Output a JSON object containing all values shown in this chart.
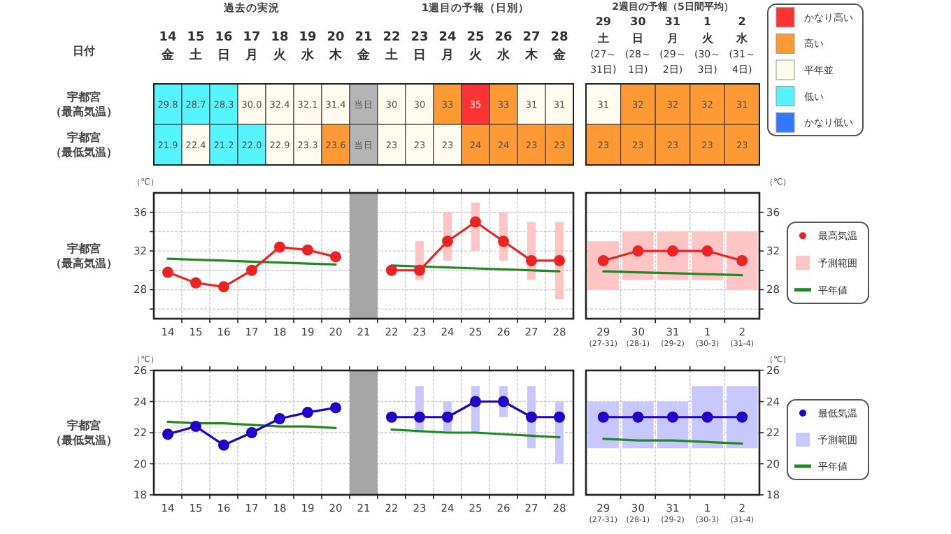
{
  "chart_data": [
    {
      "type": "heatmap",
      "xlabel": "日付",
      "annotations": [
        "過去の実況",
        "1週目の予報（日別）"
      ],
      "categories": [
        "14\n金",
        "15\n土",
        "16\n日",
        "17\n月",
        "18\n火",
        "19\n水",
        "20\n木",
        "21\n金",
        "22\n土",
        "23\n日",
        "24\n月",
        "25\n火",
        "26\n水",
        "27\n木",
        "28\n金"
      ],
      "y_categories": [
        "宇都宮（最高気温）",
        "宇都宮（最低気温）"
      ],
      "cells": [
        [
          29.8,
          28.7,
          28.3,
          30.0,
          32.4,
          32.1,
          31.4,
          null,
          30,
          30,
          33,
          35,
          33,
          31,
          31
        ],
        [
          21.9,
          22.4,
          21.2,
          22.0,
          22.9,
          23.3,
          23.6,
          null,
          23,
          23,
          23,
          24,
          24,
          23,
          23
        ]
      ],
      "cell_labels": [
        [
          "29.8",
          "28.7",
          "28.3",
          "30.0",
          "32.4",
          "32.1",
          "31.4",
          "当日",
          "30",
          "30",
          "33",
          "35",
          "33",
          "31",
          "31"
        ],
        [
          "21.9",
          "22.4",
          "21.2",
          "22.0",
          "22.9",
          "23.3",
          "23.6",
          "当日",
          "23",
          "23",
          "23",
          "24",
          "24",
          "23",
          "23"
        ]
      ],
      "colors": [
        [
          "#55f5ff",
          "#55f5ff",
          "#55f5ff",
          "#fffbef",
          "#fffbef",
          "#fffbef",
          "#fffbef",
          "#b4b4b4",
          "#fffbef",
          "#fffbef",
          "#ff9933",
          "#ff3333",
          "#ff9933",
          "#fffbef",
          "#fffbef"
        ],
        [
          "#55f5ff",
          "#fffbef",
          "#55f5ff",
          "#55f5ff",
          "#fffbef",
          "#fffbef",
          "#ff9933",
          "#b4b4b4",
          "#fffbef",
          "#fffbef",
          "#fffbef",
          "#ff9933",
          "#ff9933",
          "#ff9933",
          "#ff9933"
        ]
      ]
    },
    {
      "type": "heatmap",
      "title": "2週目の予報（5日間平均）",
      "categories": [
        "29\n土\n(27～\n31日)",
        "30\n日\n(28～\n1日)",
        "31\n月\n(29～\n2日)",
        "1\n火\n(30～\n3日)",
        "2\n水\n(31～\n4日)"
      ],
      "y_categories": [
        null,
        null
      ],
      "cells": [
        [
          31,
          32,
          32,
          32,
          31
        ],
        [
          23,
          23,
          23,
          23,
          23
        ]
      ],
      "cell_labels": [
        [
          "31",
          "32",
          "32",
          "32",
          "31"
        ],
        [
          "23",
          "23",
          "23",
          "23",
          "23"
        ]
      ],
      "colors": [
        [
          "#fffbef",
          "#ff9933",
          "#ff9933",
          "#ff9933",
          "#ff9933"
        ],
        [
          "#ff9933",
          "#ff9933",
          "#ff9933",
          "#ff9933",
          "#ff9933"
        ]
      ]
    },
    {
      "type": "other",
      "categories": [
        "かなり高い",
        "高い",
        "平年並",
        "低い",
        "かなり低い"
      ],
      "colors": [
        "#ff3333",
        "#ff9933",
        "#fffbef",
        "#55f5ff",
        "#3377ff"
      ]
    },
    {
      "type": "line",
      "title": "宇都宮（最高気温）",
      "ylabel": "（℃）",
      "categories": [
        "14",
        "15",
        "16",
        "17",
        "18",
        "19",
        "20",
        "21",
        "22",
        "23",
        "24",
        "25",
        "26",
        "27",
        "28"
      ],
      "ylim": [
        25,
        38
      ],
      "yticks": [
        {
          "value": 26,
          "label": null
        },
        28,
        {
          "value": 30,
          "label": null
        },
        32,
        {
          "value": 34,
          "label": null
        },
        36
      ],
      "grid": true,
      "marker": "circle",
      "legend": false,
      "bands": [
        {
          "axis": "x",
          "from": "21",
          "to": "21",
          "color": "#a6a6a6"
        }
      ],
      "series": [
        {
          "type": "line",
          "color": "#ee2222",
          "values": [
            29.8,
            28.7,
            28.3,
            30.0,
            32.4,
            32.1,
            31.4,
            null,
            30,
            30,
            33,
            35,
            33,
            31,
            31
          ]
        },
        {
          "type": "bar",
          "color": "#ffc4c4",
          "base": [
            null,
            null,
            null,
            null,
            null,
            null,
            null,
            null,
            null,
            29,
            31,
            32,
            31,
            29,
            27
          ],
          "values": [
            null,
            null,
            null,
            null,
            null,
            null,
            null,
            null,
            null,
            4,
            5,
            5,
            5,
            6,
            8
          ]
        },
        {
          "type": "line",
          "color": "#228822",
          "marker": "none",
          "values": [
            31.2,
            31.1,
            31.0,
            30.9,
            30.8,
            30.7,
            30.6,
            null,
            30.5,
            30.4,
            30.3,
            30.2,
            30.1,
            30.0,
            29.9
          ]
        }
      ]
    },
    {
      "type": "line",
      "y2label": "（℃）",
      "categories": [
        "29\n(27-31)",
        "30\n(28-1)",
        "31\n(29-2)",
        "1\n(30-3)",
        "2\n(31-4)"
      ],
      "y2lim": [
        25,
        38
      ],
      "y2ticks": [
        {
          "value": 26,
          "label": null
        },
        28,
        {
          "value": 30,
          "label": null
        },
        32,
        {
          "value": 34,
          "label": null
        },
        36
      ],
      "grid": true,
      "marker": "circle",
      "legend": "right",
      "series": [
        {
          "name": "最高気温",
          "type": "line",
          "axis": "y2",
          "color": "#ee2222",
          "values": [
            31,
            32,
            32,
            32,
            31
          ]
        },
        {
          "name": "予測範囲",
          "type": "bar",
          "axis": "y2",
          "color": "#ffc4c4",
          "base": [
            28,
            29,
            29,
            29,
            28
          ],
          "values": [
            5,
            5,
            5,
            5,
            6
          ]
        },
        {
          "name": "平年値",
          "type": "line",
          "axis": "y2",
          "color": "#228822",
          "marker": "none",
          "values": [
            29.9,
            29.8,
            29.7,
            29.6,
            29.5
          ]
        }
      ]
    },
    {
      "type": "line",
      "title": "宇都宮（最低気温）",
      "ylabel": "（℃）",
      "categories": [
        "14",
        "15",
        "16",
        "17",
        "18",
        "19",
        "20",
        "21",
        "22",
        "23",
        "24",
        "25",
        "26",
        "27",
        "28"
      ],
      "ylim": [
        18,
        26
      ],
      "yticks": [
        18,
        20,
        22,
        24,
        26
      ],
      "grid": true,
      "marker": "circle",
      "legend": false,
      "bands": [
        {
          "axis": "x",
          "from": "21",
          "to": "21",
          "color": "#a6a6a6"
        }
      ],
      "series": [
        {
          "type": "line",
          "color": "#2200cc",
          "values": [
            21.9,
            22.4,
            21.2,
            22.0,
            22.9,
            23.3,
            23.6,
            null,
            23,
            23,
            23,
            24,
            24,
            23,
            23
          ]
        },
        {
          "type": "bar",
          "color": "#c8c8ff",
          "base": [
            null,
            null,
            null,
            null,
            null,
            null,
            null,
            null,
            null,
            22,
            22,
            22,
            23,
            21,
            20
          ],
          "values": [
            null,
            null,
            null,
            null,
            null,
            null,
            null,
            null,
            null,
            3,
            2,
            3,
            2,
            4,
            4
          ]
        },
        {
          "type": "line",
          "color": "#228822",
          "marker": "none",
          "values": [
            22.7,
            22.6,
            22.6,
            22.5,
            22.4,
            22.4,
            22.3,
            null,
            22.2,
            22.1,
            22.0,
            22.0,
            21.9,
            21.8,
            21.7
          ]
        }
      ]
    },
    {
      "type": "line",
      "y2label": "（℃）",
      "categories": [
        "29\n(27-31)",
        "30\n(28-1)",
        "31\n(29-2)",
        "1\n(30-3)",
        "2\n(31-4)"
      ],
      "y2lim": [
        18,
        26
      ],
      "y2ticks": [
        18,
        20,
        22,
        24,
        26
      ],
      "grid": true,
      "marker": "circle",
      "legend": "right",
      "series": [
        {
          "name": "最低気温",
          "type": "line",
          "axis": "y2",
          "color": "#2200cc",
          "values": [
            23,
            23,
            23,
            23,
            23
          ]
        },
        {
          "name": "予測範囲",
          "type": "bar",
          "axis": "y2",
          "color": "#c8c8ff",
          "base": [
            21,
            21,
            21,
            21,
            21
          ],
          "values": [
            3,
            3,
            3,
            4,
            4
          ]
        },
        {
          "name": "平年値",
          "type": "line",
          "axis": "y2",
          "color": "#228822",
          "marker": "none",
          "values": [
            21.6,
            21.5,
            21.5,
            21.4,
            21.3
          ]
        }
      ]
    }
  ]
}
